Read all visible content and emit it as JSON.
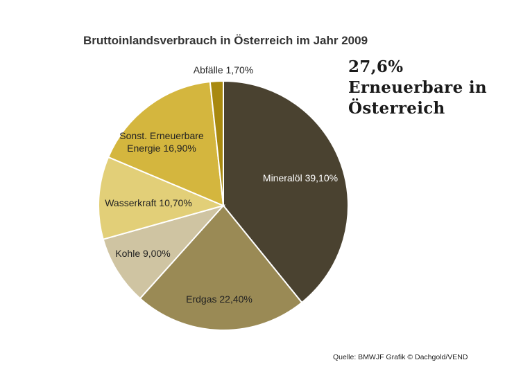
{
  "chart_data": {
    "type": "pie",
    "title": "Bruttoinlandsverbrauch in Österreich im Jahr 2009",
    "slices": [
      {
        "label": "Mineralöl",
        "value": 39.1,
        "value_label": "39,10%",
        "color": "#4a4230"
      },
      {
        "label": "Erdgas",
        "value": 22.4,
        "value_label": "22,40%",
        "color": "#9a8a55"
      },
      {
        "label": "Kohle",
        "value": 9.0,
        "value_label": "9,00%",
        "color": "#cfc4a2"
      },
      {
        "label": "Wasserkraft",
        "value": 10.7,
        "value_label": "10,70%",
        "color": "#e2cf78"
      },
      {
        "label": "Sonst. Erneuerbare Energie",
        "label_lines": [
          "Sonst. Erneuerbare",
          "Energie 16,90%"
        ],
        "value": 16.9,
        "value_label": "16,90%",
        "color": "#d4b63e"
      },
      {
        "label": "Abfälle",
        "value": 1.7,
        "value_label": "1,70%",
        "color": "#a8890f"
      }
    ]
  },
  "callout": {
    "lines": [
      "27,6%",
      "Erneuerbare in",
      "Österreich"
    ]
  },
  "source": "Quelle: BMWJF Grafik © Dachgold/VEND"
}
